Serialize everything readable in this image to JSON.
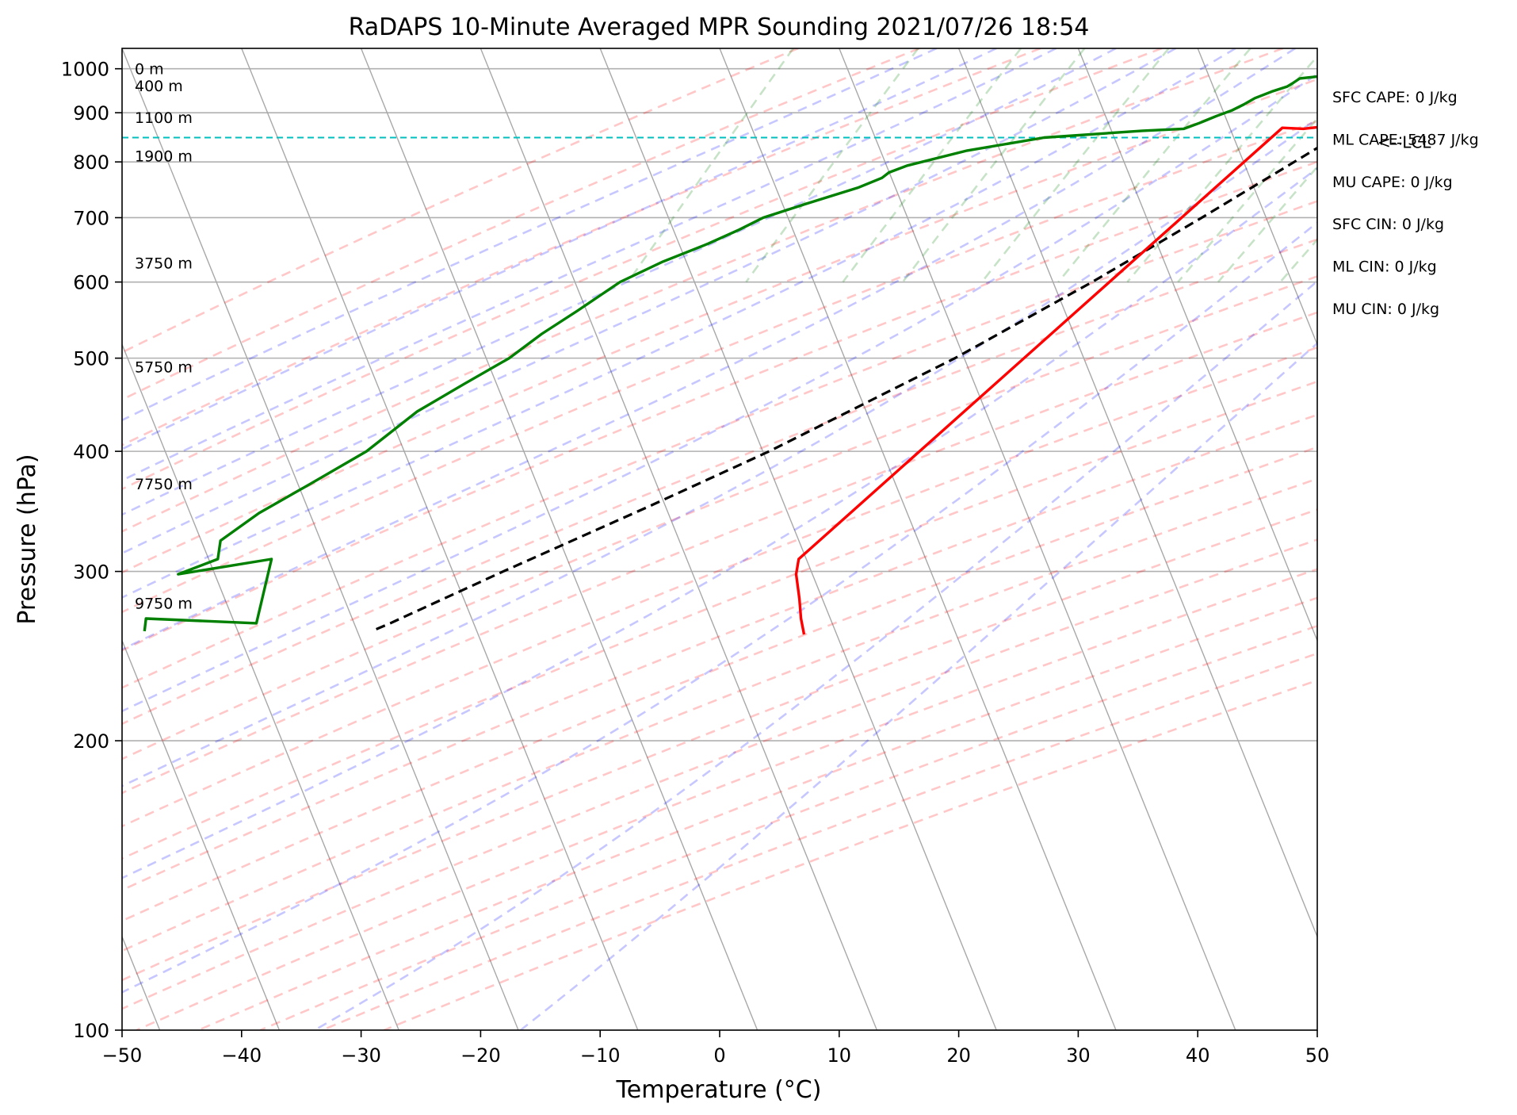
{
  "chart_data": {
    "type": "line",
    "subtype": "skew-t log-p sounding",
    "title": "RaDAPS 10-Minute Averaged MPR Sounding 2021/07/26 18:54",
    "xlabel": "Temperature (°C)",
    "ylabel": "Pressure (hPa)",
    "xlim": [
      -50,
      50
    ],
    "ylim": [
      1050,
      100
    ],
    "y_scale": "log",
    "grid": true,
    "x_ticks": [
      -50,
      -40,
      -30,
      -20,
      -10,
      0,
      10,
      20,
      30,
      40,
      50
    ],
    "x_tick_labels": [
      "−50",
      "−40",
      "−30",
      "−20",
      "−10",
      "0",
      "10",
      "20",
      "30",
      "40",
      "50"
    ],
    "y_ticks": [
      1000,
      900,
      800,
      700,
      600,
      500,
      400,
      300,
      200,
      100
    ],
    "y_tick_labels": [
      "1000",
      "900",
      "800",
      "700",
      "600",
      "500",
      "400",
      "300",
      "200",
      "100"
    ],
    "height_labels": [
      {
        "pressure": 1000,
        "label": "0 m"
      },
      {
        "pressure": 960,
        "label": "400 m"
      },
      {
        "pressure": 890,
        "label": "1100 m"
      },
      {
        "pressure": 812,
        "label": "1900 m"
      },
      {
        "pressure": 628,
        "label": "3750 m"
      },
      {
        "pressure": 490,
        "label": "5750 m"
      },
      {
        "pressure": 370,
        "label": "7750 m"
      },
      {
        "pressure": 278,
        "label": "9750 m"
      }
    ],
    "indices": [
      "SFC CAPE: 0 J/kg",
      "ML CAPE: 5487 J/kg",
      "MU CAPE: 0 J/kg",
      "SFC CIN: 0 J/kg",
      "ML CIN: 0 J/kg",
      "MU CIN: 0 J/kg"
    ],
    "lcl": {
      "pressure": 848,
      "label": "<--LCL"
    },
    "series": [
      {
        "type": "temperature",
        "color": "#ff0000",
        "points": [
          [
            991,
            34.6
          ],
          [
            975,
            29.8
          ],
          [
            969,
            26.9
          ],
          [
            960,
            31.3
          ],
          [
            944,
            34.1
          ],
          [
            932,
            33.4
          ],
          [
            905,
            28.0
          ],
          [
            878,
            22.6
          ],
          [
            866,
            18.4
          ],
          [
            868,
            16.6
          ],
          [
            309,
            -9.3
          ],
          [
            298,
            -9.0
          ],
          [
            281,
            -7.9
          ],
          [
            268,
            -7.1
          ],
          [
            258,
            -6.3
          ]
        ]
      },
      {
        "type": "dewpoint",
        "color": "#008000",
        "points": [
          [
            991,
            24.3
          ],
          [
            987,
            19.6
          ],
          [
            977,
            16.4
          ],
          [
            967,
            16.0
          ],
          [
            958,
            15.6
          ],
          [
            947,
            14.5
          ],
          [
            932,
            13.3
          ],
          [
            918,
            12.6
          ],
          [
            905,
            11.8
          ],
          [
            893,
            10.7
          ],
          [
            878,
            9.5
          ],
          [
            866,
            8.4
          ],
          [
            862,
            5.0
          ],
          [
            848,
            -3.0
          ],
          [
            822,
            -9.0
          ],
          [
            793,
            -13.5
          ],
          [
            780,
            -14.8
          ],
          [
            770,
            -15.2
          ],
          [
            752,
            -16.9
          ],
          [
            722,
            -20.9
          ],
          [
            700,
            -23.8
          ],
          [
            680,
            -25.4
          ],
          [
            658,
            -27.5
          ],
          [
            630,
            -30.7
          ],
          [
            600,
            -33.6
          ],
          [
            560,
            -36.2
          ],
          [
            530,
            -38.4
          ],
          [
            500,
            -40.3
          ],
          [
            470,
            -43.2
          ],
          [
            440,
            -46.2
          ],
          [
            400,
            -49.1
          ],
          [
            370,
            -52.7
          ],
          [
            345,
            -56.0
          ],
          [
            323,
            -58.3
          ],
          [
            309,
            -57.9
          ],
          [
            298,
            -60.7
          ],
          [
            309,
            -53.4
          ],
          [
            265,
            -52.5
          ],
          [
            268,
            -61.9
          ],
          [
            260,
            -61.6
          ]
        ]
      },
      {
        "type": "parcel",
        "color": "#000000",
        "style": "dashed",
        "points": [
          [
            991,
            34.6
          ],
          [
            940,
            30.1
          ],
          [
            900,
            26.4
          ],
          [
            860,
            22.4
          ],
          [
            848,
            21.3
          ],
          [
            700,
            12.9
          ],
          [
            600,
            5.9
          ],
          [
            500,
            -3.0
          ],
          [
            400,
            -15.4
          ],
          [
            350,
            -23.7
          ],
          [
            300,
            -33.6
          ],
          [
            265,
            -41.3
          ],
          [
            260,
            -42.6
          ]
        ]
      }
    ]
  }
}
